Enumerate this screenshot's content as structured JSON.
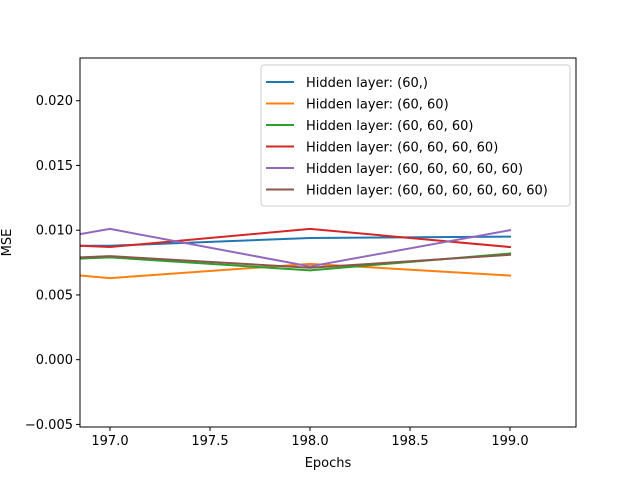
{
  "chart_data": {
    "type": "line",
    "title": "",
    "xlabel": "Epochs",
    "ylabel": "MSE",
    "xlim": [
      196.85,
      199.33
    ],
    "ylim": [
      -0.0052,
      0.0233
    ],
    "xticks": [
      197.0,
      197.5,
      198.0,
      198.5,
      199.0
    ],
    "xtick_labels": [
      "197.0",
      "197.5",
      "198.0",
      "198.5",
      "199.0"
    ],
    "yticks": [
      -0.005,
      0.0,
      0.005,
      0.01,
      0.015,
      0.02
    ],
    "ytick_labels": [
      "−0.005",
      "0.000",
      "0.005",
      "0.010",
      "0.015",
      "0.020"
    ],
    "grid": false,
    "legend_position": "top-right",
    "series": [
      {
        "name": "Hidden layer: (60,)",
        "color": "#1f77b4",
        "x": [
          196.85,
          197.0,
          198.0,
          199.0
        ],
        "y": [
          0.0088,
          0.0088,
          0.0094,
          0.0095
        ]
      },
      {
        "name": "Hidden layer: (60, 60)",
        "color": "#ff7f0e",
        "x": [
          196.85,
          197.0,
          198.0,
          199.0
        ],
        "y": [
          0.0065,
          0.0063,
          0.0074,
          0.0065
        ]
      },
      {
        "name": "Hidden layer: (60, 60, 60)",
        "color": "#2ca02c",
        "x": [
          196.85,
          197.0,
          198.0,
          199.0
        ],
        "y": [
          0.0078,
          0.0079,
          0.0069,
          0.0082
        ]
      },
      {
        "name": "Hidden layer: (60, 60, 60, 60)",
        "color": "#d62728",
        "x": [
          196.85,
          197.0,
          198.0,
          199.0
        ],
        "y": [
          0.0088,
          0.0087,
          0.0101,
          0.0087
        ]
      },
      {
        "name": "Hidden layer: (60, 60, 60, 60, 60)",
        "color": "#9467bd",
        "x": [
          196.85,
          197.0,
          198.0,
          199.0
        ],
        "y": [
          0.0097,
          0.0101,
          0.0072,
          0.01
        ]
      },
      {
        "name": "Hidden layer: (60, 60, 60, 60, 60, 60)",
        "color": "#8c564b",
        "x": [
          196.85,
          197.0,
          198.0,
          199.0
        ],
        "y": [
          0.0079,
          0.008,
          0.0071,
          0.0081
        ]
      }
    ]
  }
}
